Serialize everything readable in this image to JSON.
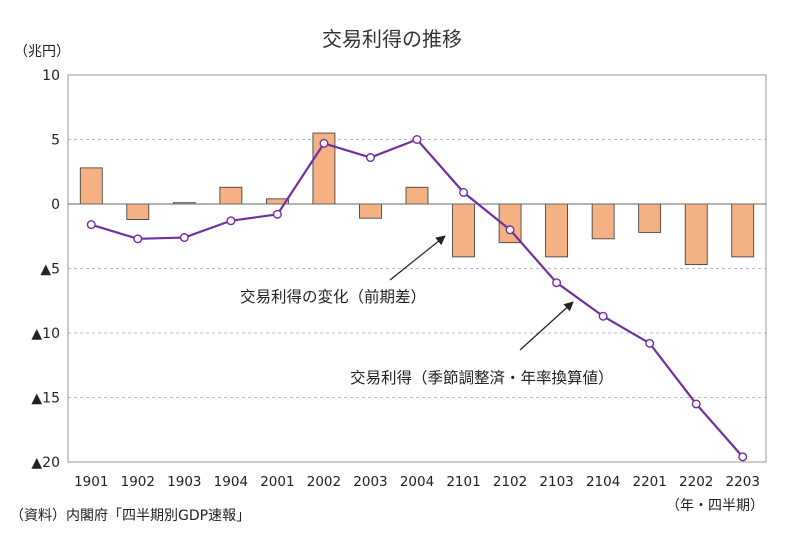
{
  "chart_data": {
    "type": "bar+line",
    "title": "交易利得の推移",
    "y_unit_label": "（兆円）",
    "x_unit_label": "（年・四半期）",
    "source_note": "（資料）内閣府「四半期別GDP速報」",
    "categories": [
      "1901",
      "1902",
      "1903",
      "1904",
      "2001",
      "2002",
      "2003",
      "2004",
      "2101",
      "2102",
      "2103",
      "2104",
      "2201",
      "2202",
      "2203"
    ],
    "ylim": [
      -20,
      10
    ],
    "yticks": [
      {
        "value": 10,
        "label": "10"
      },
      {
        "value": 5,
        "label": "5"
      },
      {
        "value": 0,
        "label": "0"
      },
      {
        "value": -5,
        "label": "▲5"
      },
      {
        "value": -10,
        "label": "▲10"
      },
      {
        "value": -15,
        "label": "▲15"
      },
      {
        "value": -20,
        "label": "▲20"
      }
    ],
    "grid": true,
    "series": [
      {
        "name": "交易利得の変化（前期差）",
        "type": "bar",
        "color": "#f4b183",
        "values": [
          2.8,
          -1.2,
          0.1,
          1.3,
          0.4,
          5.5,
          -1.1,
          1.3,
          -4.1,
          -3.0,
          -4.1,
          -2.7,
          -2.2,
          -4.7,
          -4.1
        ]
      },
      {
        "name": "交易利得（季節調整済・年率換算値）",
        "type": "line",
        "color": "#7030a0",
        "values": [
          -1.6,
          -2.7,
          -2.6,
          -1.3,
          -0.8,
          4.7,
          3.6,
          5.0,
          0.9,
          -2.0,
          -6.1,
          -8.7,
          -10.8,
          -15.5,
          -19.6
        ]
      }
    ]
  }
}
